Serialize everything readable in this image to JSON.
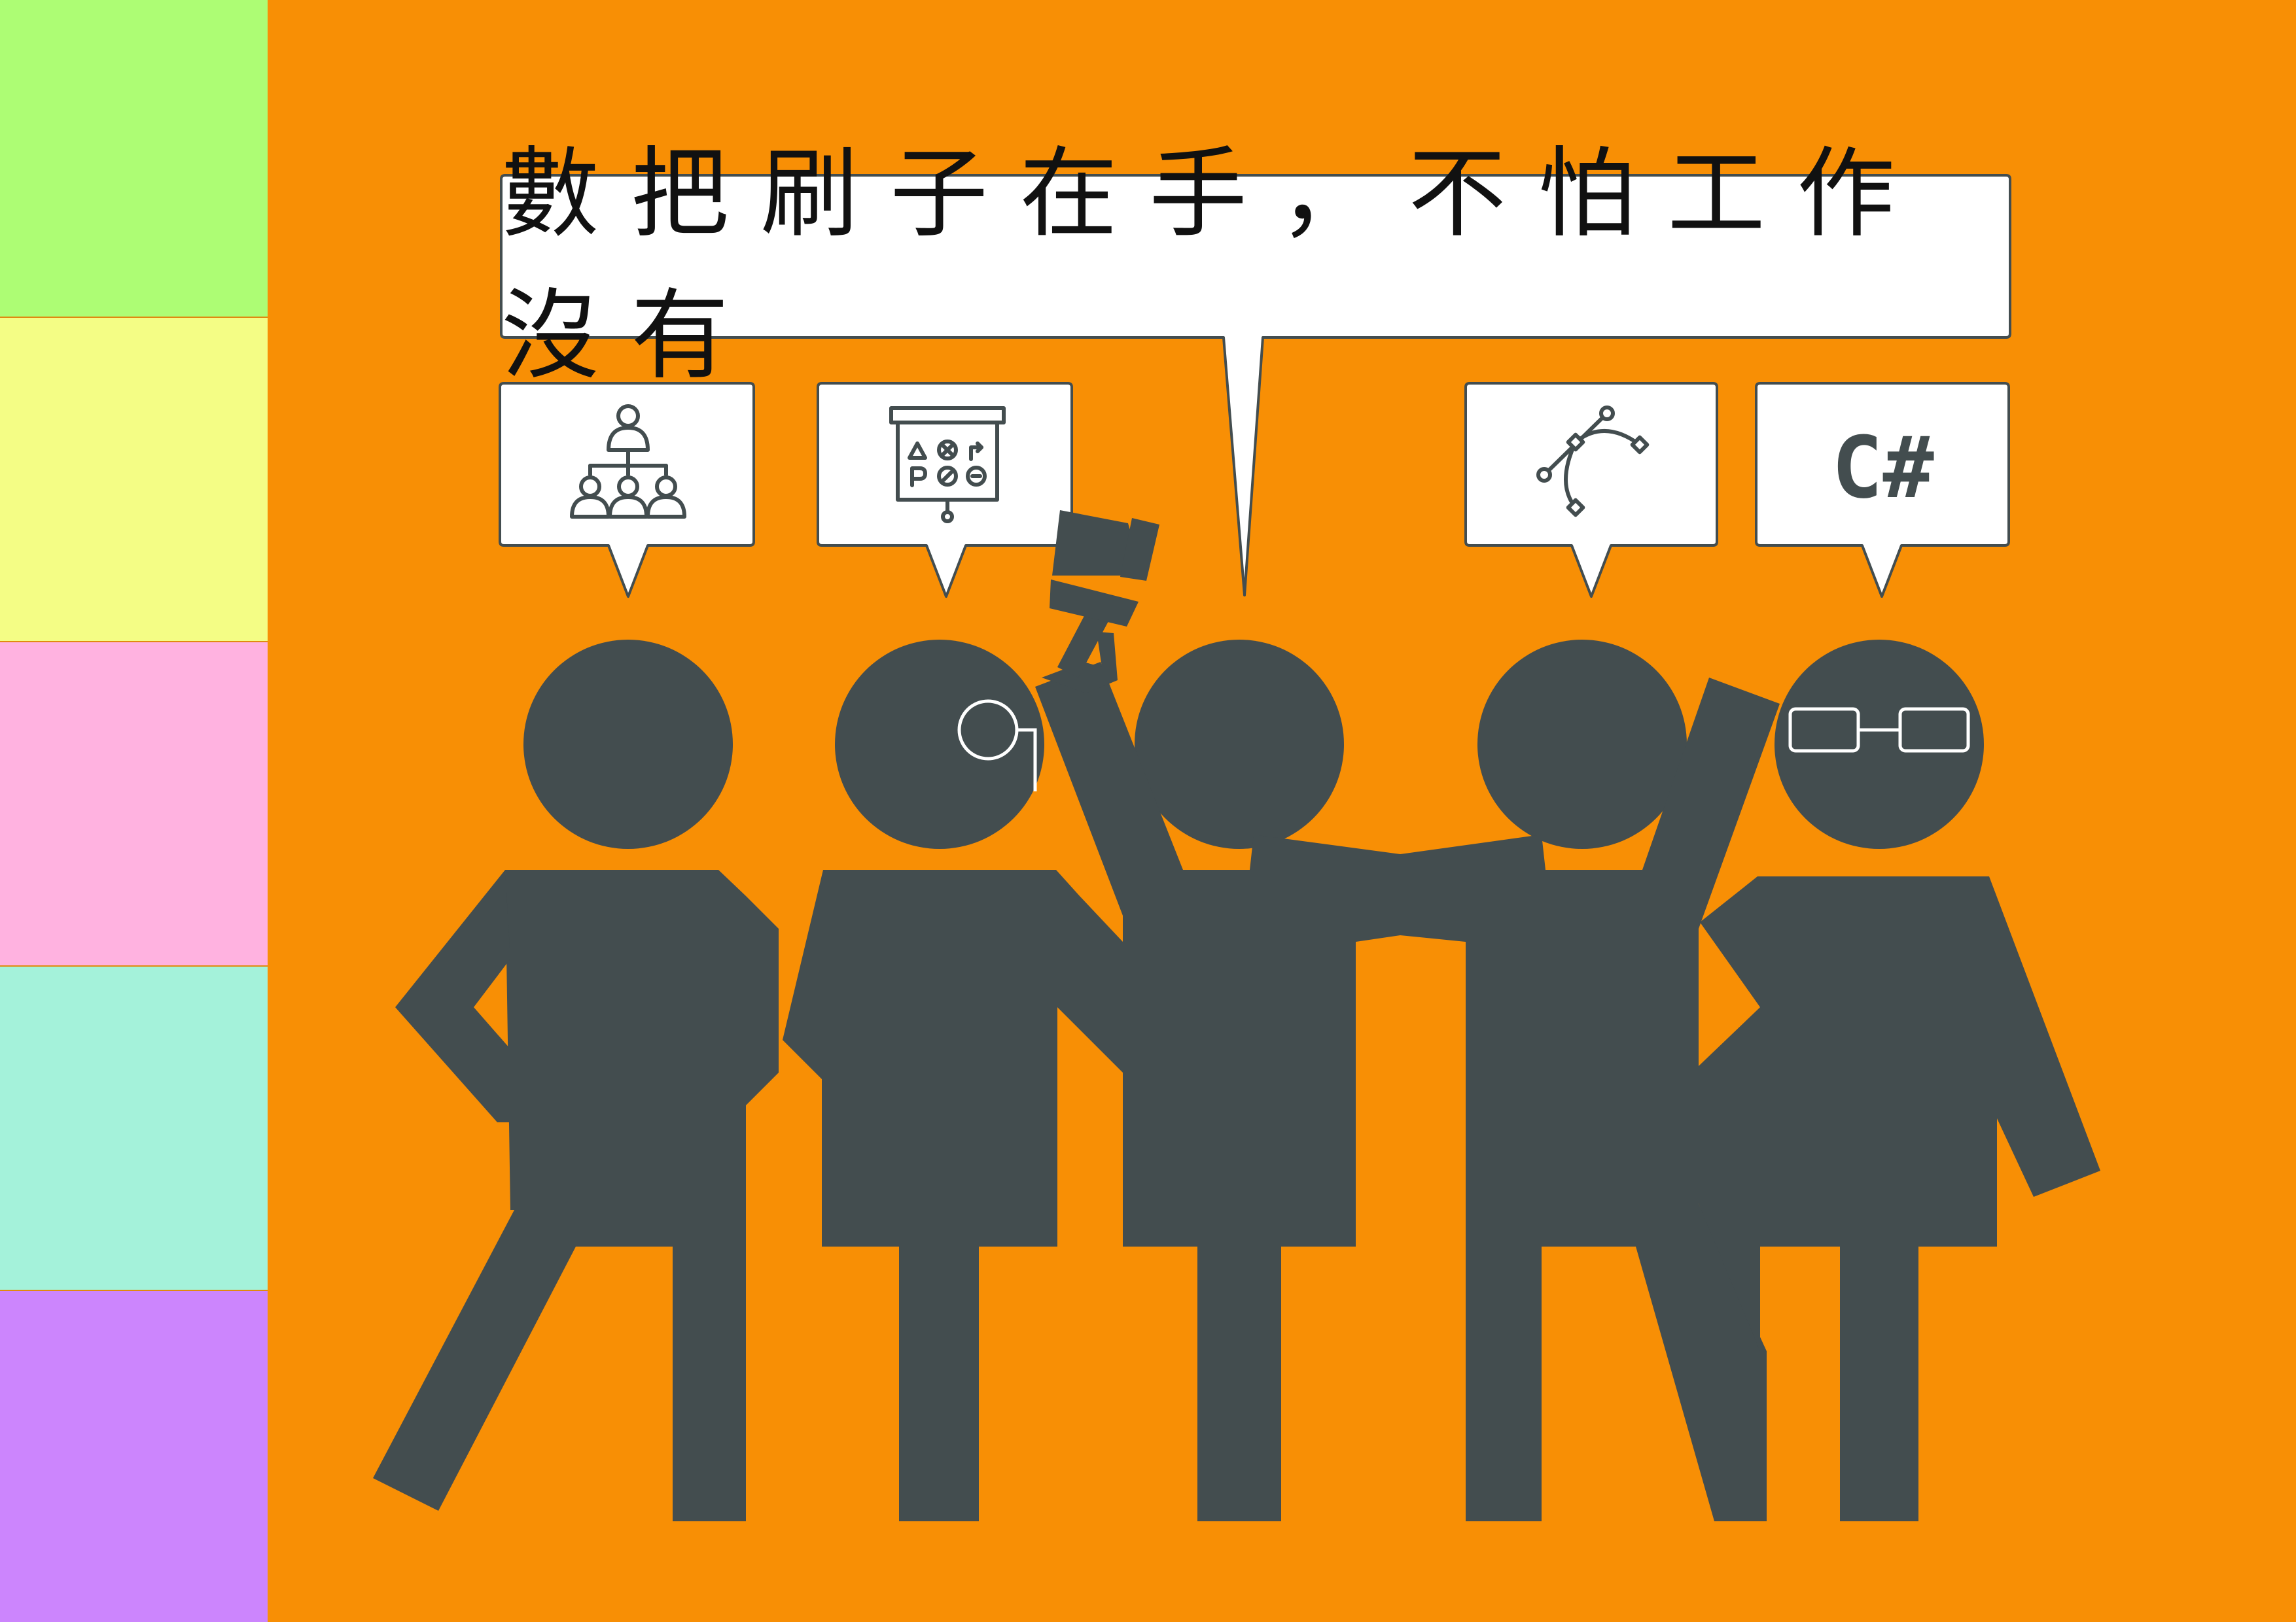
{
  "speech": {
    "main_text": "數把刷子在手，不怕工作沒有",
    "bubbles": [
      {
        "icon": "team-hierarchy-icon"
      },
      {
        "icon": "strategy-board-icon"
      },
      {
        "icon": "vector-curve-icon"
      },
      {
        "icon": "csharp-text",
        "text": "C#"
      }
    ]
  },
  "sidebar": {
    "colors": [
      "#adfd74",
      "#f4fd85",
      "#ffb2e0",
      "#a4f2da",
      "#cc85fd"
    ]
  },
  "colors": {
    "background": "#f88f05",
    "figure": "#434d4f",
    "bubble_fill": "#ffffff",
    "bubble_border": "#434d4f"
  },
  "figures": [
    {
      "accessory": "none"
    },
    {
      "accessory": "monocle"
    },
    {
      "accessory": "paintbrush"
    },
    {
      "accessory": "none"
    },
    {
      "accessory": "glasses"
    }
  ]
}
